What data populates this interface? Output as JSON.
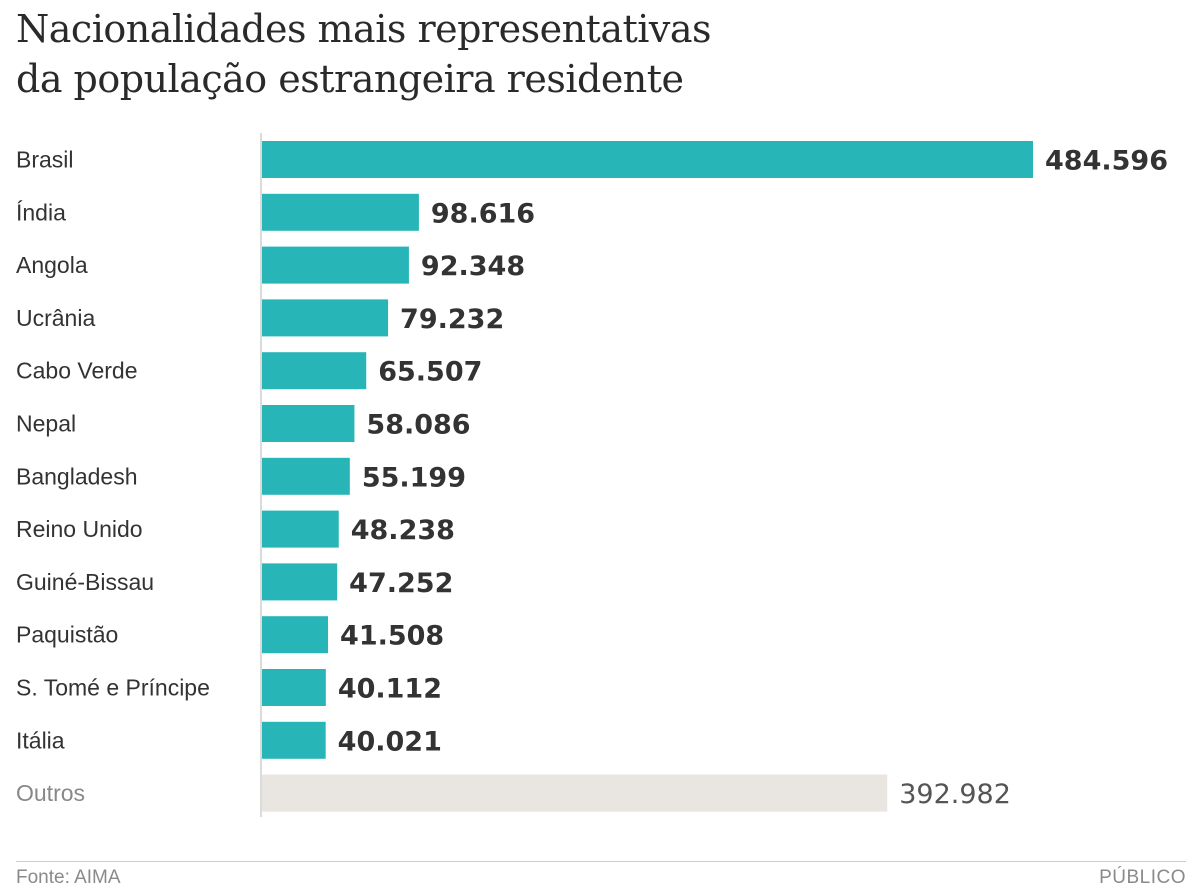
{
  "chart_data": {
    "type": "bar",
    "orientation": "horizontal",
    "title_lines": [
      "Nacionalidades mais representativas",
      "da população estrangeira residente"
    ],
    "categories": [
      "Brasil",
      "Índia",
      "Angola",
      "Ucrânia",
      "Cabo Verde",
      "Nepal",
      "Bangladesh",
      "Reino Unido",
      "Guiné-Bissau",
      "Paquistão",
      "S. Tomé e Príncipe",
      "Itália",
      "Outros"
    ],
    "values": [
      484596,
      98616,
      92348,
      79232,
      65507,
      58086,
      55199,
      48238,
      47252,
      41508,
      40112,
      40021,
      392982
    ],
    "value_labels": [
      "484.596",
      "98.616",
      "92.348",
      "79.232",
      "65.507",
      "58.086",
      "55.199",
      "48.238",
      "47.252",
      "41.508",
      "40.112",
      "40.021",
      "392.982"
    ],
    "highlight_color": "#27b5b8",
    "other_color": "#e9e5e1",
    "xlim": [
      0,
      484596
    ],
    "grid": false,
    "source": "Fonte: AIMA",
    "brand": "PÚBLICO"
  }
}
